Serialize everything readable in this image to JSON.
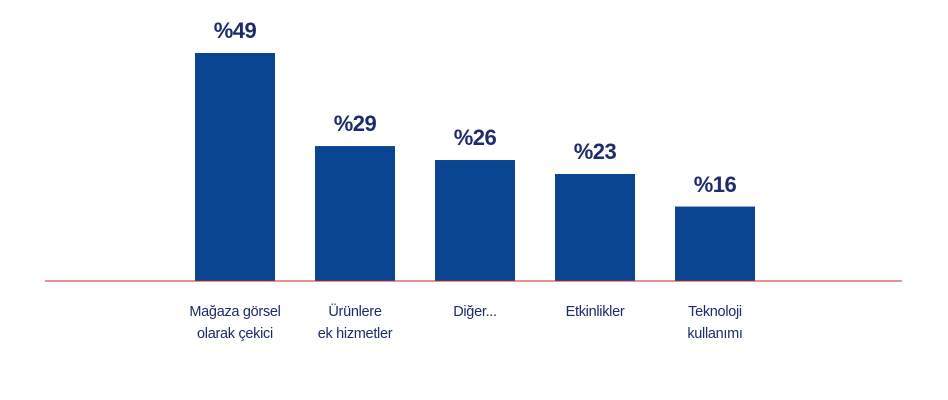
{
  "chart_data": {
    "type": "bar",
    "categories": [
      "Mağaza görsel\nolarak çekici",
      "Ürünlere\nek hizmetler",
      "Diğer...",
      "Etkinlikler",
      "Teknoloji\nkullanımı"
    ],
    "values": [
      49,
      29,
      26,
      23,
      16
    ],
    "value_labels": [
      "%49",
      "%29",
      "%26",
      "%23",
      "%16"
    ],
    "color": "#0a4591",
    "baseline_color": "#c0282d"
  }
}
